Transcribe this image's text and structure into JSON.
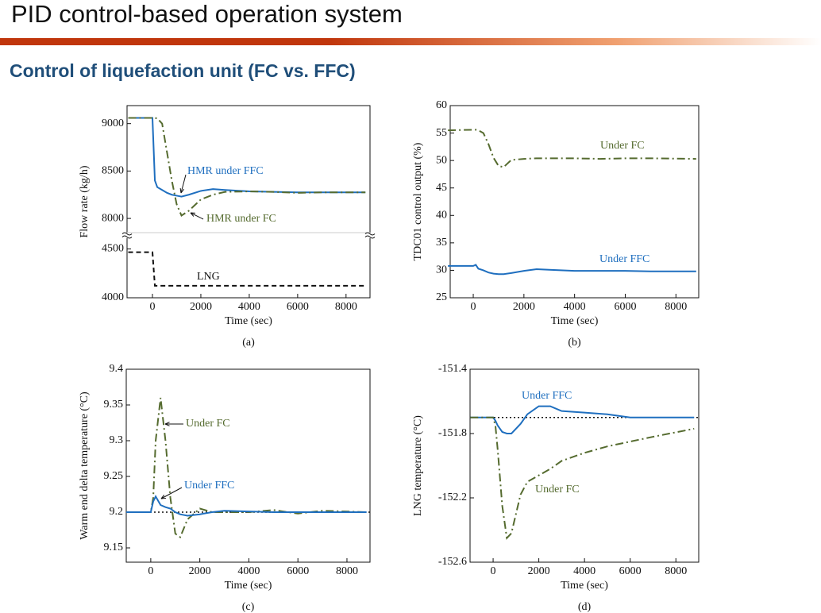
{
  "header": {
    "title": "PID control-based operation system",
    "subtitle": "Control of liquefaction unit (FC vs. FFC)"
  },
  "chart_data": [
    {
      "type": "line",
      "caption": "(a)",
      "xlabel": "Time (sec)",
      "ylabel": "Flow rate (kg/h)",
      "x": [
        -1000,
        0,
        100,
        200,
        400,
        600,
        800,
        1000,
        1200,
        1500,
        2000,
        2500,
        3000,
        4000,
        5000,
        6000,
        7000,
        8800
      ],
      "xlim": [
        -1050,
        8990
      ],
      "xticks": [
        0,
        2000,
        4000,
        6000,
        8000
      ],
      "ylim": [
        7850,
        9190
      ],
      "yticks": [
        8000,
        8500,
        9000
      ],
      "y2lim": [
        4000,
        4610
      ],
      "y2ticks": [
        4000,
        4500
      ],
      "axis_break": true,
      "series": [
        {
          "name": "HMR under FFC",
          "color": "#1f6fbf",
          "dash": "solid",
          "values": [
            9060,
            9060,
            8400,
            8330,
            8300,
            8270,
            8250,
            8240,
            8230,
            8250,
            8290,
            8310,
            8300,
            8285,
            8280,
            8275,
            8275,
            8275
          ]
        },
        {
          "name": "HMR under FC",
          "color": "#556b2f",
          "dash": "dashdot",
          "values": [
            9060,
            9060,
            9060,
            9055,
            9000,
            8700,
            8400,
            8150,
            8030,
            8080,
            8200,
            8250,
            8280,
            8285,
            8280,
            8270,
            8275,
            8275
          ]
        },
        {
          "name": "LNG",
          "color": "#111111",
          "dash": "dash",
          "axis": "y2",
          "values": [
            4467,
            4467,
            4123,
            4123,
            4123,
            4123,
            4123,
            4123,
            4123,
            4123,
            4123,
            4123,
            4123,
            4123,
            4123,
            4123,
            4123,
            4123
          ]
        }
      ]
    },
    {
      "type": "line",
      "caption": "(b)",
      "xlabel": "Time (sec)",
      "ylabel": "TDC01 control output (%)",
      "x": [
        -1000,
        0,
        100,
        200,
        400,
        600,
        800,
        1000,
        1200,
        1500,
        2000,
        2500,
        3000,
        4000,
        5000,
        6000,
        7000,
        8800
      ],
      "xlim": [
        -910,
        8900
      ],
      "xticks": [
        0,
        2000,
        4000,
        6000,
        8000
      ],
      "ylim": [
        25,
        60
      ],
      "yticks": [
        25,
        30,
        35,
        40,
        45,
        50,
        55,
        60
      ],
      "series": [
        {
          "name": "Under FC",
          "color": "#556b2f",
          "dash": "dashdot",
          "values": [
            55.5,
            55.6,
            55.6,
            55.5,
            55,
            53,
            50.5,
            49,
            48.8,
            50.1,
            50.3,
            50.4,
            50.4,
            50.4,
            50.3,
            50.4,
            50.4,
            50.3
          ]
        },
        {
          "name": "Under FFC",
          "color": "#1f6fbf",
          "dash": "solid",
          "values": [
            30.8,
            30.8,
            31,
            30.3,
            30,
            29.6,
            29.4,
            29.3,
            29.3,
            29.5,
            29.9,
            30.2,
            30.1,
            29.9,
            29.9,
            29.9,
            29.8,
            29.8
          ]
        }
      ]
    },
    {
      "type": "line",
      "caption": "(c)",
      "xlabel": "Time (sec)",
      "ylabel": "Warm end delta temperature (°C)",
      "x": [
        -1000,
        0,
        100,
        200,
        400,
        600,
        800,
        1000,
        1200,
        1500,
        2000,
        2500,
        3000,
        4000,
        5000,
        6000,
        7000,
        8800
      ],
      "xlim": [
        -1000,
        8940
      ],
      "xticks": [
        0,
        2000,
        4000,
        6000,
        8000
      ],
      "ylim": [
        9.13,
        9.4
      ],
      "yticks": [
        9.15,
        9.2,
        9.25,
        9.3,
        9.35,
        9.4
      ],
      "ref_line": 9.2,
      "series": [
        {
          "name": "Under FC",
          "color": "#556b2f",
          "dash": "dashdot",
          "values": [
            9.2,
            9.2,
            9.22,
            9.3,
            9.36,
            9.3,
            9.22,
            9.17,
            9.165,
            9.19,
            9.205,
            9.2,
            9.2,
            9.2,
            9.203,
            9.198,
            9.202,
            9.2
          ]
        },
        {
          "name": "Under FFC",
          "color": "#1f6fbf",
          "dash": "solid",
          "values": [
            9.2,
            9.2,
            9.215,
            9.222,
            9.21,
            9.207,
            9.205,
            9.2,
            9.197,
            9.195,
            9.197,
            9.2,
            9.202,
            9.201,
            9.2,
            9.2,
            9.2,
            9.2
          ]
        }
      ]
    },
    {
      "type": "line",
      "caption": "(d)",
      "xlabel": "Time (sec)",
      "ylabel": "LNG temperature (°C)",
      "x": [
        -1000,
        0,
        100,
        200,
        400,
        600,
        800,
        1000,
        1200,
        1500,
        2000,
        2500,
        3000,
        4000,
        5000,
        6000,
        7000,
        8800
      ],
      "xlim": [
        -1010,
        9000
      ],
      "xticks": [
        0,
        2000,
        4000,
        6000,
        8000
      ],
      "ylim": [
        -152.6,
        -151.4
      ],
      "yticks": [
        -152.6,
        -152.2,
        -151.8,
        -151.4
      ],
      "ref_line": -151.7,
      "series": [
        {
          "name": "Under FFC",
          "color": "#1f6fbf",
          "dash": "solid",
          "values": [
            -151.7,
            -151.7,
            -151.72,
            -151.75,
            -151.79,
            -151.8,
            -151.8,
            -151.77,
            -151.74,
            -151.68,
            -151.63,
            -151.63,
            -151.66,
            -151.67,
            -151.68,
            -151.7,
            -151.7,
            -151.7
          ]
        },
        {
          "name": "Under FC",
          "color": "#556b2f",
          "dash": "dashdot",
          "values": [
            -151.7,
            -151.7,
            -151.75,
            -151.9,
            -152.25,
            -152.45,
            -152.42,
            -152.3,
            -152.18,
            -152.1,
            -152.06,
            -152.02,
            -151.97,
            -151.92,
            -151.88,
            -151.85,
            -151.82,
            -151.77
          ]
        }
      ]
    }
  ]
}
